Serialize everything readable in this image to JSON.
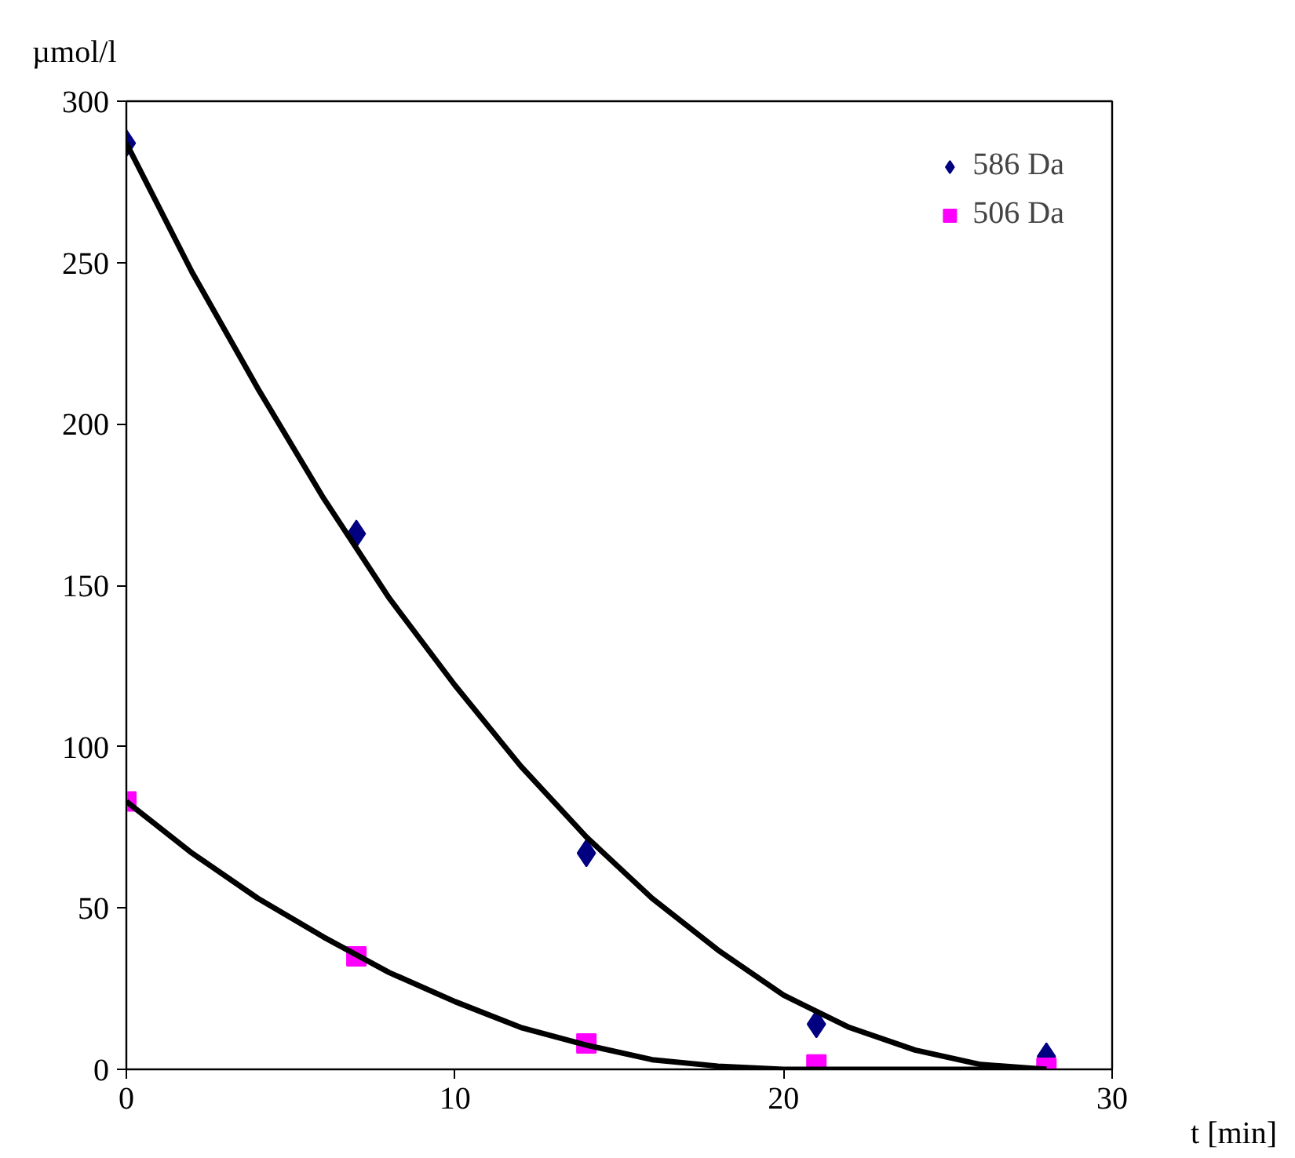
{
  "chart_data": {
    "type": "scatter",
    "xlabel": "t [min]",
    "ylabel": "µmol/l",
    "xlim": [
      0,
      30
    ],
    "ylim": [
      0,
      300
    ],
    "xticks": [
      0,
      10,
      20,
      30
    ],
    "yticks": [
      0,
      50,
      100,
      150,
      200,
      250,
      300
    ],
    "grid": false,
    "legend": "top right",
    "series": [
      {
        "name": "586 Da",
        "marker": "diamond",
        "color": "#000080",
        "x": [
          0,
          7,
          14,
          21,
          28
        ],
        "values": [
          287,
          166,
          67,
          14,
          4
        ]
      },
      {
        "name": "506 Da",
        "marker": "square",
        "color": "#ff00ff",
        "x": [
          0,
          7,
          14,
          21,
          28
        ],
        "values": [
          83,
          35,
          8,
          1.5,
          0.5
        ]
      },
      {
        "type": "line",
        "marker": "none",
        "line_style": "solid",
        "color": "#000000",
        "x": [
          0,
          2,
          4,
          6,
          8,
          10,
          12,
          14,
          16,
          18,
          20,
          22,
          24,
          26,
          28
        ],
        "values": [
          287,
          247,
          211,
          177,
          146,
          119,
          94,
          72,
          53,
          37,
          23,
          13,
          6,
          1.5,
          0
        ]
      },
      {
        "type": "line",
        "marker": "none",
        "line_style": "solid",
        "color": "#000000",
        "x": [
          0,
          2,
          4,
          6,
          8,
          10,
          12,
          14,
          16,
          18,
          20,
          22,
          24,
          26,
          28
        ],
        "values": [
          83,
          67,
          53,
          41,
          30,
          21,
          13,
          7.5,
          3,
          1,
          0,
          0,
          0,
          0,
          0
        ]
      }
    ]
  }
}
